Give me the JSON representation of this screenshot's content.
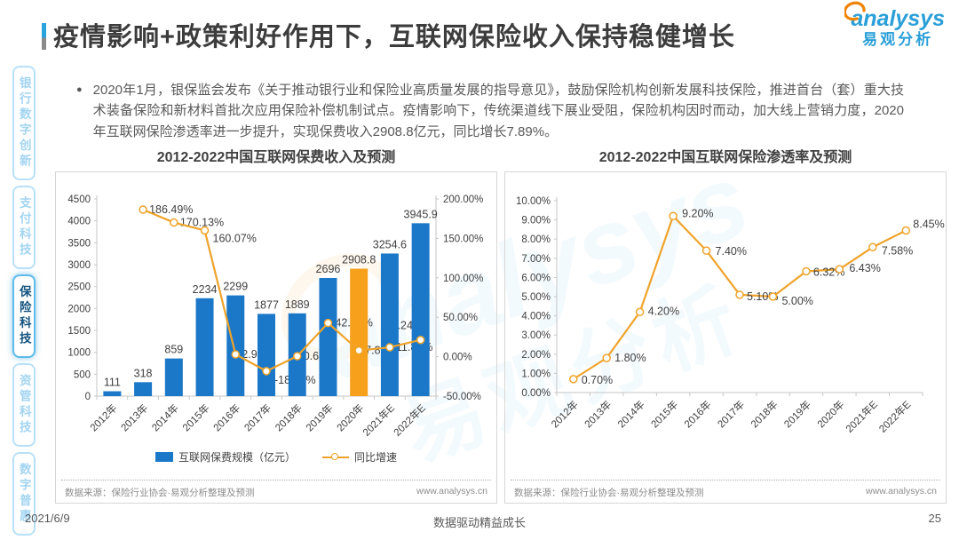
{
  "header": {
    "title": "疫情影响+政策利好作用下，互联网保险收入保持稳健增长",
    "logo": {
      "brand": "analysys",
      "brand_cn": "易观分析"
    }
  },
  "sidebar": {
    "items": [
      {
        "label": "银行数字创新",
        "active": false
      },
      {
        "label": "支付科技",
        "active": false
      },
      {
        "label": "保险科技",
        "active": true
      },
      {
        "label": "资管科技",
        "active": false
      },
      {
        "label": "数字普惠",
        "active": false
      }
    ]
  },
  "bullet": {
    "text": "2020年1月，银保监会发布《关于推动银行业和保险业高质量发展的指导意见》，鼓励保险机构创新发展科技保险，推进首台（套）重大技术装备保险和新材料首批次应用保险补偿机制试点。疫情影响下，传统渠道线下展业受阻，保险机构因时而动，加大线上营销力度，2020年互联网保险渗透率进一步提升，实现保费收入2908.8亿元，同比增长7.89%。"
  },
  "colors": {
    "bar_blue": "#1B78C9",
    "bar_highlight_orange": "#F7A01B",
    "line_orange": "#EFA32A",
    "brand_blue": "#2B9FD8",
    "brand_orange": "#F08300"
  },
  "chart_data": [
    {
      "type": "bar",
      "title": "2012-2022中国互联网保费收入及预测",
      "categories": [
        "2012年",
        "2013年",
        "2014年",
        "2015年",
        "2016年",
        "2017年",
        "2018年",
        "2019年",
        "2020年",
        "2021年E",
        "2022年E"
      ],
      "series": [
        {
          "name": "互联网保费规模（亿元）",
          "type": "bar",
          "values": [
            111,
            318,
            859,
            2234,
            2299,
            1877,
            1889,
            2696,
            2908.8,
            3254.6,
            3945.9
          ],
          "labels": [
            "111",
            "318",
            "859",
            "2234",
            "2299",
            "1877",
            "1889",
            "2696",
            "2908.8",
            "3254.6",
            "3945.9"
          ],
          "color": "#1B78C9",
          "highlight_index": 8,
          "highlight_color": "#F7A01B"
        },
        {
          "name": "同比增速",
          "type": "line",
          "axis": "right",
          "start_index": 1,
          "values": [
            186.49,
            170.13,
            160.07,
            2.91,
            -18.36,
            0.64,
            42.72,
            7.89,
            11.89,
            21.24
          ],
          "labels": [
            "186.49%",
            "170.13%",
            "160.07%",
            "2.91%",
            "-18.36%",
            "0.64%",
            "42.72%",
            "7.89%",
            "11.89%",
            "21.24%"
          ],
          "color": "#EFA32A"
        }
      ],
      "left_axis": {
        "min": 0,
        "max": 4500,
        "step": 500,
        "tick_labels": [
          "4500",
          "4000",
          "3500",
          "3000",
          "2500",
          "2000",
          "1500",
          "1000",
          "500",
          "0"
        ]
      },
      "right_axis": {
        "min": -50,
        "max": 200,
        "step": 50,
        "tick_labels": [
          "200.00%",
          "150.00%",
          "100.00%",
          "50.00%",
          "0.00%",
          "-50.00%"
        ]
      },
      "legend": [
        {
          "type": "bar",
          "label": "互联网保费规模（亿元）",
          "color": "#1B78C9"
        },
        {
          "type": "line",
          "label": "同比增速",
          "color": "#EFA32A"
        }
      ],
      "grid": false,
      "source": "数据来源：保险行业协会·易观分析整理及预测",
      "website": "www.analysys.cn"
    },
    {
      "type": "line",
      "title": "2012-2022中国互联网保险渗透率及预测",
      "categories": [
        "2012年",
        "2013年",
        "2014年",
        "2015年",
        "2016年",
        "2017年",
        "2018年",
        "2019年",
        "2020年",
        "2021年E",
        "2022年E"
      ],
      "series": [
        {
          "name": "互联网保险渗透率",
          "type": "line",
          "values": [
            0.7,
            1.8,
            4.2,
            9.2,
            7.4,
            5.1,
            5.0,
            6.32,
            6.43,
            7.58,
            8.45
          ],
          "labels": [
            "0.70%",
            "1.80%",
            "4.20%",
            "9.20%",
            "7.40%",
            "5.10%",
            "5.00%",
            "6.32%",
            "6.43%",
            "7.58%",
            "8.45%"
          ],
          "color": "#EFA32A"
        }
      ],
      "y_axis": {
        "min": 0,
        "max": 10,
        "step": 1,
        "tick_labels": [
          "10.00%",
          "9.00%",
          "8.00%",
          "7.00%",
          "6.00%",
          "5.00%",
          "4.00%",
          "3.00%",
          "2.00%",
          "1.00%",
          "0.00%"
        ]
      },
      "grid": false,
      "source": "数据来源：保险行业协会·易观分析整理及预测",
      "website": "www.analysys.cn"
    }
  ],
  "page": {
    "date": "2021/6/9",
    "footer_center": "数据驱动精益成长",
    "page_number": "25"
  }
}
